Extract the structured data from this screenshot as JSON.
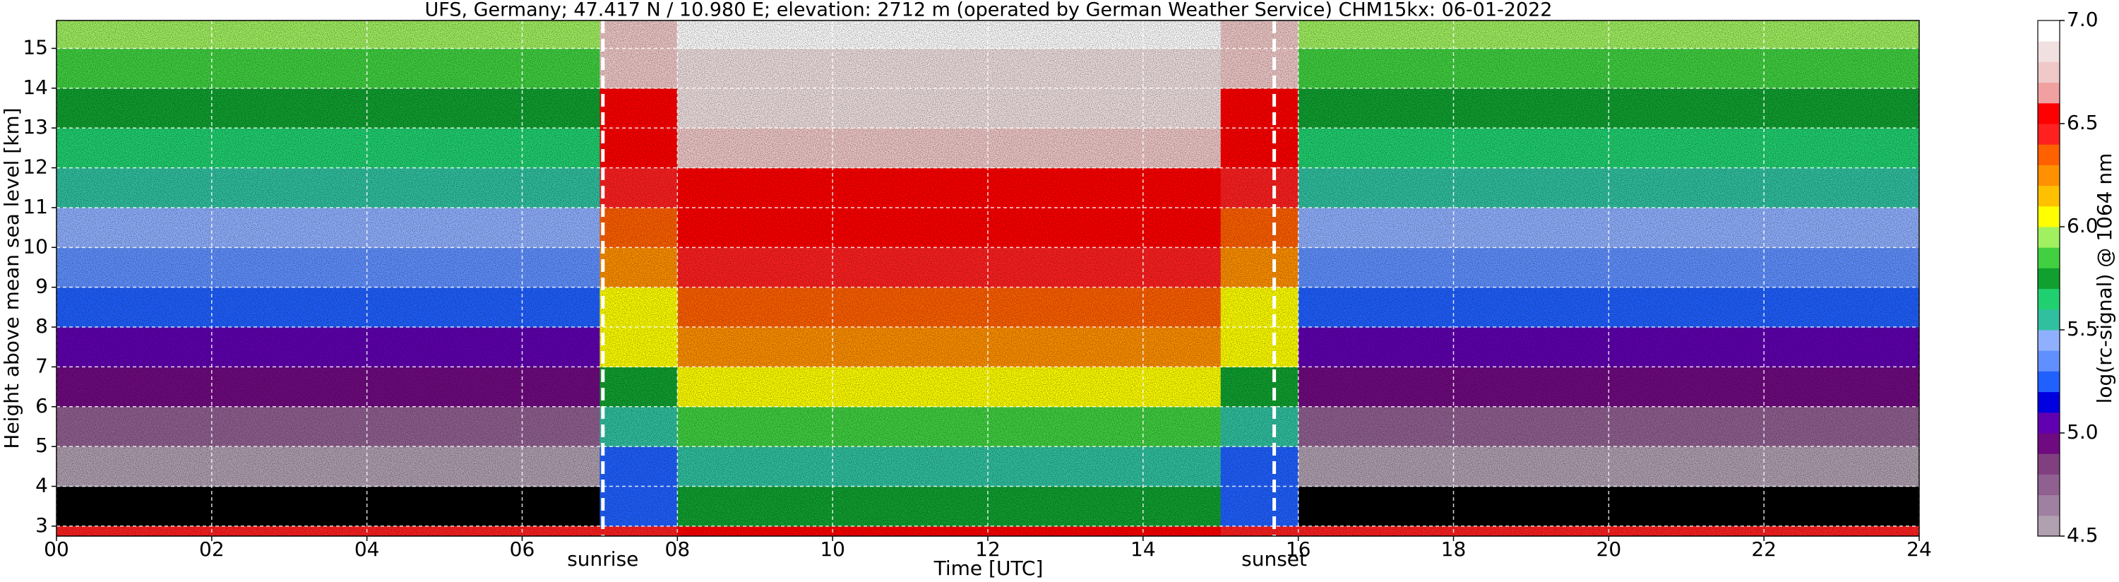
{
  "chart_data": {
    "type": "heatmap",
    "title": "UFS, Germany; 47.417 N / 10.980 E; elevation: 2712 m  (operated by German Weather Service)    CHM15kx: 06-01-2022",
    "xlabel": "Time [UTC]",
    "ylabel": "Height above mean sea level [km]",
    "colorbar_label": "log(rc-signal) @ 1064 nm",
    "xlim": [
      0,
      24
    ],
    "xticks": [
      {
        "value": 0,
        "label": "00"
      },
      {
        "value": 2,
        "label": "02"
      },
      {
        "value": 4,
        "label": "04"
      },
      {
        "value": 6,
        "label": "06"
      },
      {
        "value": 8,
        "label": "08"
      },
      {
        "value": 10,
        "label": "10"
      },
      {
        "value": 12,
        "label": "12"
      },
      {
        "value": 14,
        "label": "14"
      },
      {
        "value": 16,
        "label": "16"
      },
      {
        "value": 18,
        "label": "18"
      },
      {
        "value": 20,
        "label": "20"
      },
      {
        "value": 22,
        "label": "22"
      },
      {
        "value": 24,
        "label": "24"
      }
    ],
    "ylim": [
      2.75,
      15.7
    ],
    "yticks": [
      3,
      4,
      5,
      6,
      7,
      8,
      9,
      10,
      11,
      12,
      13,
      14,
      15
    ],
    "grid": true,
    "clim": [
      4.5,
      7
    ],
    "cticks": [
      4.5,
      {
        "value": 5,
        "label": "5.0"
      },
      5.5,
      {
        "value": 6,
        "label": "6.0"
      },
      6.5,
      {
        "value": 7,
        "label": "7.0"
      }
    ],
    "colormap": [
      "#b0a0b0",
      "#a080a0",
      "#906090",
      "#804080",
      "#700a80",
      "#6000b0",
      "#0000e0",
      "#2060ff",
      "#6090ff",
      "#90b0ff",
      "#30c0a0",
      "#20d070",
      "#10a030",
      "#40d040",
      "#a0f060",
      "#ffff00",
      "#ffc000",
      "#ff9000",
      "#ff6000",
      "#ff2020",
      "#ff0000",
      "#f0a0a0",
      "#f0c8c8",
      "#f0e0e0",
      "#ffffff"
    ],
    "annotations": [
      {
        "text": "sunrise",
        "x": 7.04
      },
      {
        "text": "sunset",
        "x": 15.69
      }
    ],
    "x_edges": [
      0,
      1,
      2,
      3,
      4,
      5,
      6,
      7,
      8,
      9,
      10,
      11,
      12,
      13,
      14,
      15,
      16,
      17,
      18,
      19,
      20,
      21,
      22,
      23,
      24
    ],
    "y_edges": [
      2.75,
      3,
      4,
      5,
      6,
      7,
      8,
      9,
      10,
      11,
      12,
      13,
      14,
      15,
      15.7
    ],
    "z": [
      [
        6.4,
        6.4,
        6.4,
        6.4,
        6.4,
        6.4,
        6.4,
        6.4,
        6.5,
        6.5,
        6.5,
        6.5,
        6.5,
        6.5,
        6.5,
        6.4,
        6.4,
        6.4,
        6.4,
        6.4,
        6.4,
        6.4,
        6.4,
        6.4
      ],
      [
        null,
        null,
        null,
        null,
        null,
        null,
        null,
        5.2,
        5.8,
        5.8,
        5.8,
        5.8,
        5.8,
        5.8,
        5.8,
        5.2,
        null,
        null,
        null,
        null,
        null,
        null,
        null,
        null
      ],
      [
        4.6,
        4.6,
        4.6,
        4.6,
        4.6,
        4.6,
        4.6,
        5.3,
        5.6,
        5.6,
        5.6,
        5.6,
        5.6,
        5.6,
        5.6,
        5.3,
        4.6,
        4.6,
        4.6,
        4.6,
        4.6,
        4.6,
        4.6,
        4.6
      ],
      [
        4.75,
        4.75,
        4.75,
        4.75,
        4.75,
        4.75,
        4.75,
        5.6,
        5.85,
        5.85,
        5.85,
        5.85,
        5.85,
        5.85,
        5.85,
        5.6,
        4.75,
        4.75,
        4.75,
        4.75,
        4.75,
        4.75,
        4.75,
        4.75
      ],
      [
        4.9,
        4.9,
        4.9,
        4.9,
        4.9,
        4.9,
        4.9,
        5.8,
        6.05,
        6.05,
        6.05,
        6.05,
        6.05,
        6.05,
        6.05,
        5.8,
        4.9,
        4.9,
        4.9,
        4.9,
        4.9,
        4.9,
        4.9,
        4.9
      ],
      [
        5.05,
        5.05,
        5.05,
        5.05,
        5.05,
        5.05,
        5.05,
        6.0,
        6.2,
        6.2,
        6.2,
        6.2,
        6.2,
        6.2,
        6.2,
        6.0,
        5.05,
        5.05,
        5.05,
        5.05,
        5.05,
        5.05,
        5.05,
        5.05
      ],
      [
        5.2,
        5.2,
        5.2,
        5.2,
        5.2,
        5.2,
        5.2,
        6.1,
        6.3,
        6.3,
        6.3,
        6.3,
        6.3,
        6.3,
        6.3,
        6.1,
        5.2,
        5.2,
        5.2,
        5.2,
        5.2,
        5.2,
        5.2,
        5.2
      ],
      [
        5.35,
        5.35,
        5.35,
        5.35,
        5.35,
        5.35,
        5.35,
        6.2,
        6.4,
        6.4,
        6.4,
        6.4,
        6.4,
        6.4,
        6.4,
        6.2,
        5.35,
        5.35,
        5.35,
        5.35,
        5.35,
        5.35,
        5.35,
        5.35
      ],
      [
        5.45,
        5.45,
        5.45,
        5.45,
        5.45,
        5.45,
        5.45,
        6.3,
        6.5,
        6.5,
        6.5,
        6.5,
        6.5,
        6.5,
        6.5,
        6.3,
        5.45,
        5.45,
        5.45,
        5.45,
        5.45,
        5.45,
        5.45,
        5.45
      ],
      [
        5.55,
        5.55,
        5.55,
        5.55,
        5.55,
        5.55,
        5.55,
        6.4,
        6.6,
        6.6,
        6.6,
        6.6,
        6.6,
        6.6,
        6.6,
        6.4,
        5.55,
        5.55,
        5.55,
        5.55,
        5.55,
        5.55,
        5.55,
        5.55
      ],
      [
        5.65,
        5.65,
        5.65,
        5.65,
        5.65,
        5.65,
        5.65,
        6.5,
        6.7,
        6.7,
        6.7,
        6.7,
        6.7,
        6.7,
        6.7,
        6.5,
        5.65,
        5.65,
        5.65,
        5.65,
        5.65,
        5.65,
        5.65,
        5.65
      ],
      [
        5.75,
        5.75,
        5.75,
        5.75,
        5.75,
        5.75,
        5.75,
        6.6,
        6.8,
        6.8,
        6.8,
        6.8,
        6.8,
        6.8,
        6.8,
        6.6,
        5.75,
        5.75,
        5.75,
        5.75,
        5.75,
        5.75,
        5.75,
        5.75
      ],
      [
        5.85,
        5.85,
        5.85,
        5.85,
        5.85,
        5.85,
        5.85,
        6.7,
        6.85,
        6.85,
        6.85,
        6.85,
        6.85,
        6.85,
        6.85,
        6.7,
        5.85,
        5.85,
        5.85,
        5.85,
        5.85,
        5.85,
        5.85,
        5.85
      ],
      [
        5.95,
        5.95,
        5.95,
        5.95,
        5.95,
        5.95,
        5.95,
        6.75,
        6.9,
        6.9,
        6.9,
        6.9,
        6.9,
        6.9,
        6.9,
        6.75,
        5.95,
        5.95,
        5.95,
        5.95,
        5.95,
        5.95,
        5.95,
        5.95
      ]
    ]
  }
}
